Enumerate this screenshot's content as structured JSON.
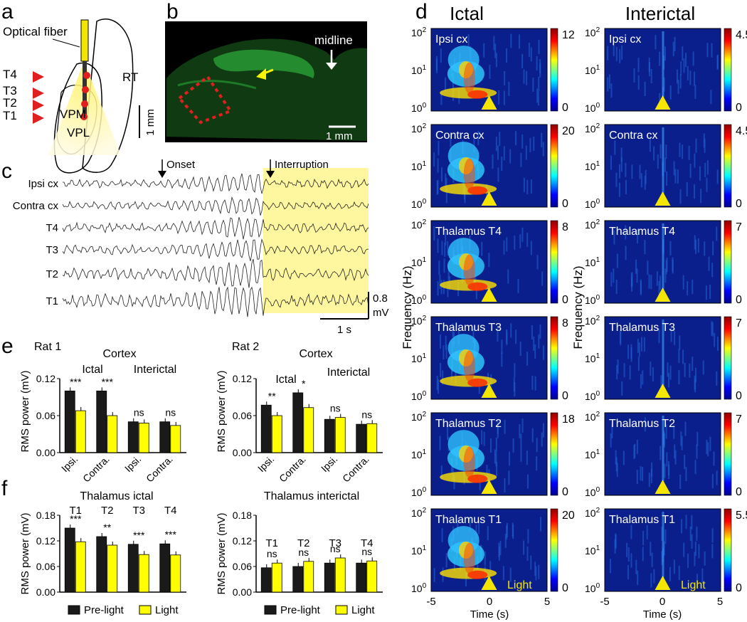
{
  "panels": {
    "a": "a",
    "b": "b",
    "c": "c",
    "d": "d",
    "e": "e",
    "f": "f"
  },
  "panel_a": {
    "fiber_label": "Optical fiber",
    "sites": [
      "T4",
      "T3",
      "T2",
      "T1"
    ],
    "regions": {
      "rt": "RT",
      "vpm": "VPM",
      "vpl": "VPL"
    },
    "scale": "1 mm",
    "colors": {
      "fiber": "#f2e600",
      "site": "#e02020",
      "arrow": "#e02020",
      "cone": "#fff7a0"
    }
  },
  "panel_b": {
    "midline": "midline",
    "scale": "1 mm",
    "colors": {
      "tissue": "#1d8a2a",
      "arrow": "#f5f500",
      "dash": "#e02020"
    }
  },
  "panel_c": {
    "onset": "Onset",
    "interruption": "Interruption",
    "traces": [
      "Ipsi cx",
      "Contra cx",
      "T4",
      "T3",
      "T2",
      "T1"
    ],
    "scale_mv": "0.8",
    "scale_unit": "mV",
    "scale_time": "1 s",
    "colors": {
      "light": "#fff7a0"
    }
  },
  "panel_d": {
    "col_ictal": "Ictal",
    "col_interictal": "Interictal",
    "ylabel": "Frequency (Hz)",
    "xlabel": "Time (s)",
    "xticks": [
      "-5",
      "0",
      "5"
    ],
    "yticks": [
      "10",
      "10",
      "10"
    ],
    "yexps": [
      "2",
      "1",
      "0"
    ],
    "light": "Light",
    "rows": [
      {
        "label": "Ipsi cx",
        "ictal_max": "12",
        "inter_max": "4.5",
        "zero": "0"
      },
      {
        "label": "Contra cx",
        "ictal_max": "20",
        "inter_max": "4.5",
        "zero": "0"
      },
      {
        "label": "Thalamus T4",
        "ictal_max": "8",
        "inter_max": "7",
        "zero": "0"
      },
      {
        "label": "Thalamus T3",
        "ictal_max": "8",
        "inter_max": "7",
        "zero": "0"
      },
      {
        "label": "Thalamus T2",
        "ictal_max": "18",
        "inter_max": "7",
        "zero": "0"
      },
      {
        "label": "Thalamus T1",
        "ictal_max": "20",
        "inter_max": "5.5",
        "zero": "0"
      }
    ],
    "colors": {
      "bg": "#0b1f8c",
      "arrow": "#f5e600"
    }
  },
  "panel_e": {
    "rat1": "Rat 1",
    "rat2": "Rat 2",
    "cortex": "Cortex",
    "ictal": "Ictal",
    "interictal": "Interictal",
    "ylabel": "RMS power (mV)",
    "yticks": [
      "0.00",
      "0.06",
      "0.12"
    ],
    "xlabels": [
      "Ipsi.",
      "Contra.",
      "Ipsi.",
      "Contra."
    ]
  },
  "panel_f": {
    "title_ictal": "Thalamus ictal",
    "title_inter": "Thalamus interictal",
    "ylabel": "RMS power (mV)",
    "ictal_yticks": [
      "0.00",
      "0.06",
      "0.12",
      "0.18"
    ],
    "inter_yticks": [
      "0.00",
      "0.06",
      "0.12",
      "0.18"
    ],
    "groups": [
      "T1",
      "T2",
      "T3",
      "T4"
    ],
    "legend": {
      "pre": "Pre-light",
      "light": "Light"
    },
    "colors": {
      "pre": "#1a1a1a",
      "light": "#ffff00"
    }
  },
  "chart_data": [
    {
      "type": "bar",
      "title": "Rat 1 Cortex",
      "ylabel": "RMS power (mV)",
      "ylim": [
        0,
        0.12
      ],
      "categories": [
        "Ictal Ipsi.",
        "Ictal Contra.",
        "Interictal Ipsi.",
        "Interictal Contra."
      ],
      "series": [
        {
          "name": "Pre-light",
          "values": [
            0.1,
            0.1,
            0.05,
            0.05
          ]
        },
        {
          "name": "Light",
          "values": [
            0.068,
            0.06,
            0.048,
            0.044
          ]
        }
      ],
      "annotations": [
        "***",
        "***",
        "ns",
        "ns"
      ]
    },
    {
      "type": "bar",
      "title": "Rat 2 Cortex",
      "ylabel": "RMS power (mV)",
      "ylim": [
        0,
        0.12
      ],
      "categories": [
        "Ictal Ipsi.",
        "Ictal Contra.",
        "Interictal Ipsi.",
        "Interictal Contra."
      ],
      "series": [
        {
          "name": "Pre-light",
          "values": [
            0.077,
            0.097,
            0.054,
            0.046
          ]
        },
        {
          "name": "Light",
          "values": [
            0.06,
            0.073,
            0.057,
            0.047
          ]
        }
      ],
      "annotations": [
        "**",
        "*",
        "ns",
        "ns"
      ]
    },
    {
      "type": "bar",
      "title": "Thalamus ictal",
      "ylabel": "RMS power (mV)",
      "ylim": [
        0,
        0.18
      ],
      "categories": [
        "T1",
        "T2",
        "T3",
        "T4"
      ],
      "series": [
        {
          "name": "Pre-light",
          "values": [
            0.15,
            0.13,
            0.112,
            0.113
          ]
        },
        {
          "name": "Light",
          "values": [
            0.118,
            0.11,
            0.088,
            0.087
          ]
        }
      ],
      "annotations": [
        "***",
        "**",
        "***",
        "***"
      ]
    },
    {
      "type": "bar",
      "title": "Thalamus interictal",
      "ylabel": "RMS power (mV)",
      "ylim": [
        0,
        0.18
      ],
      "categories": [
        "T1",
        "T2",
        "T3",
        "T4"
      ],
      "series": [
        {
          "name": "Pre-light",
          "values": [
            0.057,
            0.06,
            0.068,
            0.068
          ]
        },
        {
          "name": "Light",
          "values": [
            0.068,
            0.072,
            0.08,
            0.073
          ]
        }
      ],
      "annotations": [
        "ns",
        "ns",
        "ns",
        "ns"
      ]
    }
  ]
}
